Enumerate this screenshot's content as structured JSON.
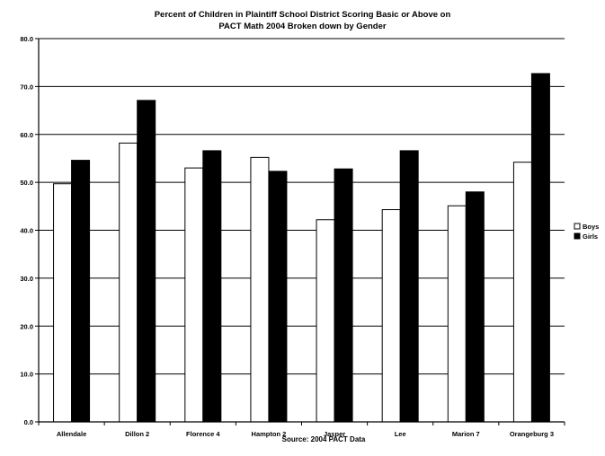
{
  "chart_data": {
    "type": "bar",
    "title_fragment": "",
    "title_line_1": "Percent of Children in Plaintiff School District Scoring Basic or Above on",
    "title_line_2": "PACT Math 2004 Broken down by Gender",
    "xlabel": "",
    "ylabel": "",
    "ylim": [
      0,
      80
    ],
    "yticks": [
      "0.0",
      "10.0",
      "20.0",
      "30.0",
      "40.0",
      "50.0",
      "60.0",
      "70.0",
      "80.0"
    ],
    "categories": [
      "Allendale",
      "Dillon 2",
      "Florence 4",
      "Hampton 2",
      "Jasper",
      "Lee",
      "Marion 7",
      "Orangeburg 3"
    ],
    "series": [
      {
        "name": "Boys",
        "color": "#ffffff",
        "values": [
          49.7,
          58.2,
          53.0,
          55.2,
          42.2,
          44.3,
          45.1,
          54.2
        ]
      },
      {
        "name": "Girls",
        "color": "#000000",
        "values": [
          54.6,
          67.1,
          56.6,
          52.3,
          52.8,
          56.6,
          48.0,
          72.7
        ]
      }
    ],
    "grid": true,
    "legend_position": "right",
    "source": "Source: 2004 PACT Data"
  }
}
